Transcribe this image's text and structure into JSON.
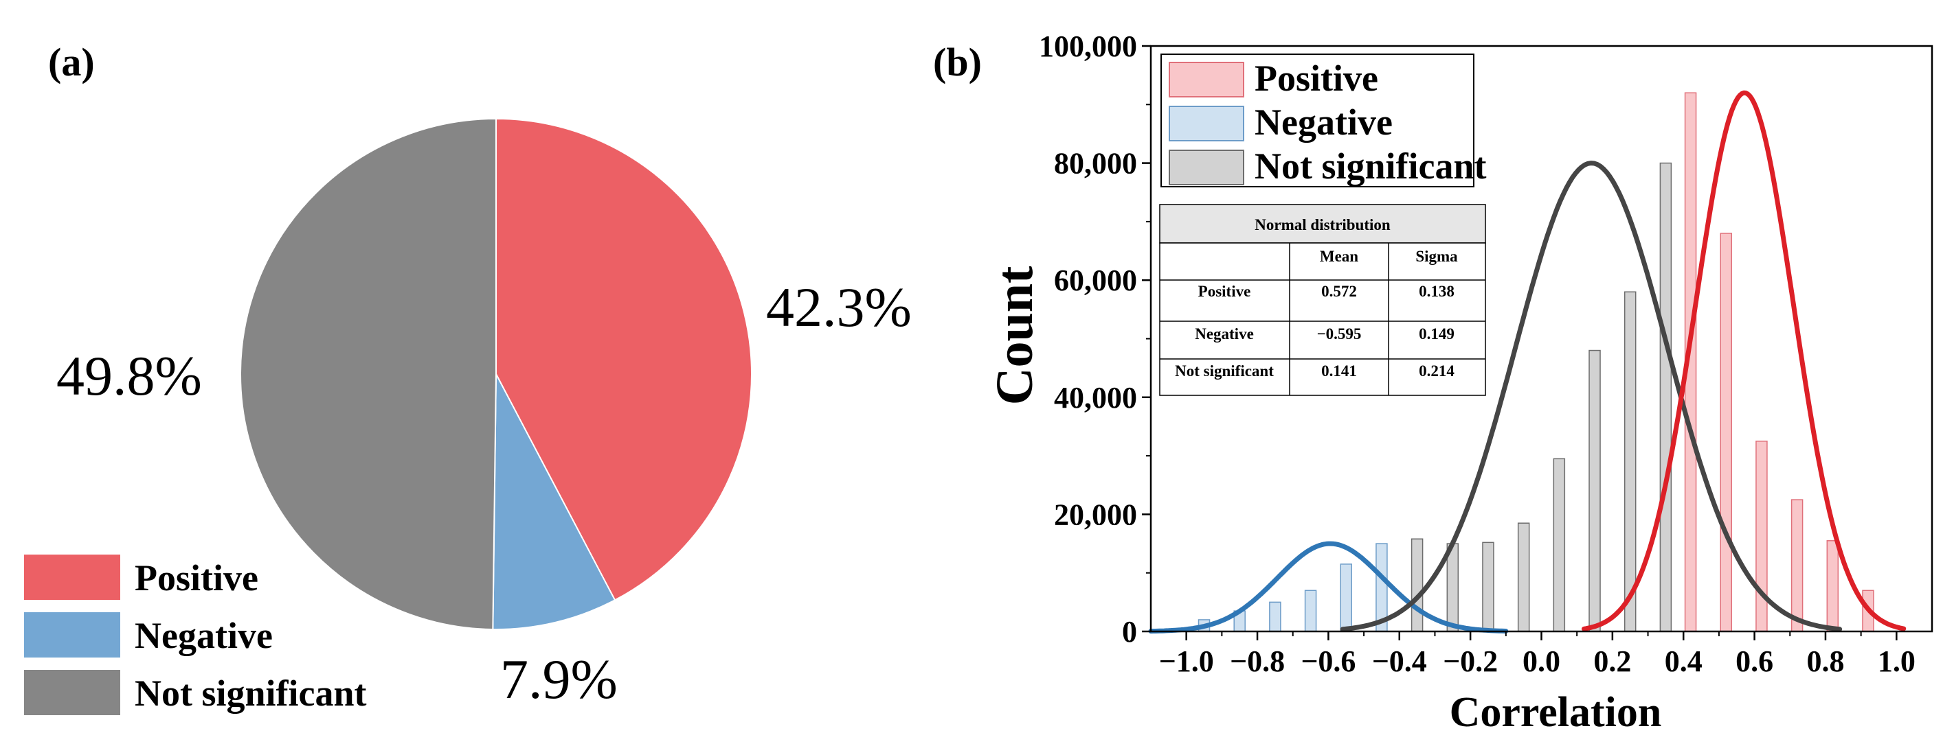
{
  "panels": {
    "a": "(a)",
    "b": "(b)"
  },
  "colors": {
    "positive": "#ec6065",
    "negative": "#74a7d3",
    "not_significant": "#868686",
    "pos_bar": "#f9c6c9",
    "pos_edge": "#e0707a",
    "neg_bar": "#cfe1f1",
    "neg_edge": "#6d9cc8",
    "ns_bar": "#d2d2d2",
    "ns_edge": "#6d6d6d",
    "pos_curve": "#dd2027",
    "neg_curve": "#2f77b6",
    "ns_curve": "#454545"
  },
  "chart_data": [
    {
      "type": "pie",
      "slices": [
        {
          "label": "Positive",
          "value": 42.3,
          "pct_label": "42.3%"
        },
        {
          "label": "Negative",
          "value": 7.9,
          "pct_label": "7.9%"
        },
        {
          "label": "Not significant",
          "value": 49.8,
          "pct_label": "49.8%"
        }
      ],
      "legend": [
        "Positive",
        "Negative",
        "Not significant"
      ],
      "legend_position": "bottom-left"
    },
    {
      "type": "bar",
      "xlabel": "Correlation",
      "ylabel": "Count",
      "xlim": [
        -1.1,
        1.1
      ],
      "ylim": [
        0,
        100000
      ],
      "xticks": [
        "−1.0",
        "−0.8",
        "−0.6",
        "−0.4",
        "−0.2",
        "0.0",
        "0.2",
        "0.4",
        "0.6",
        "0.8",
        "1.0"
      ],
      "yticks": [
        "0",
        "20,000",
        "40,000",
        "60,000",
        "80,000",
        "100,000"
      ],
      "legend": [
        "Positive",
        "Negative",
        "Not significant"
      ],
      "legend_position": "top-left",
      "series": [
        {
          "name": "Negative",
          "x": [
            -0.95,
            -0.85,
            -0.75,
            -0.65,
            -0.55,
            -0.45
          ],
          "values": [
            2000,
            3500,
            5000,
            7000,
            11500,
            15000
          ]
        },
        {
          "name": "Not significant",
          "x": [
            -0.35,
            -0.25,
            -0.15,
            -0.05,
            0.05,
            0.15,
            0.25,
            0.35
          ],
          "values": [
            15800,
            15000,
            15200,
            18500,
            29500,
            48000,
            58000,
            80000
          ]
        },
        {
          "name": "Positive",
          "x": [
            0.42,
            0.52,
            0.62,
            0.72,
            0.82,
            0.92
          ],
          "values": [
            92000,
            68000,
            32500,
            22500,
            15500,
            7000
          ]
        }
      ],
      "curves": [
        {
          "name": "Negative",
          "mean": -0.595,
          "sigma": 0.149,
          "peak": 15000,
          "range": [
            -1.1,
            -0.1
          ]
        },
        {
          "name": "Not significant",
          "mean": 0.141,
          "sigma": 0.214,
          "peak": 80000,
          "range": [
            -0.56,
            0.84
          ]
        },
        {
          "name": "Positive",
          "mean": 0.572,
          "sigma": 0.138,
          "peak": 92000,
          "range": [
            0.12,
            1.02
          ]
        }
      ],
      "table": {
        "title": "Normal distribution",
        "headers": [
          "",
          "Mean",
          "Sigma"
        ],
        "rows": [
          {
            "label": "Positive",
            "mean": "0.572",
            "sigma": "0.138"
          },
          {
            "label": "Negative",
            "mean": "−0.595",
            "sigma": "0.149"
          },
          {
            "label": "Not significant",
            "mean": "0.141",
            "sigma": "0.214"
          }
        ]
      }
    }
  ]
}
